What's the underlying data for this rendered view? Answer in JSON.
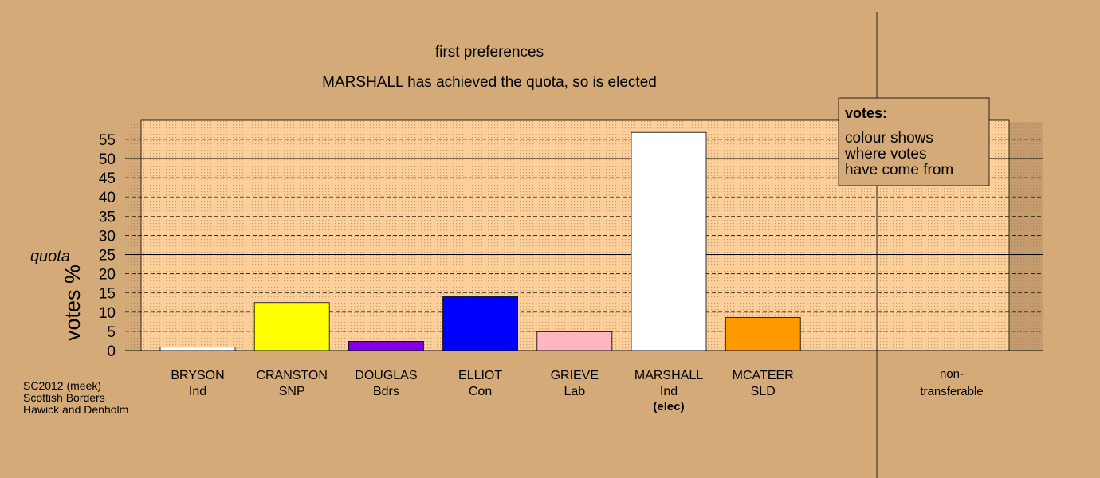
{
  "colors": {
    "background": "#d4aa78",
    "plot_bg": "#fdcf9a",
    "dots": "#b0895e",
    "legend_bg": "#d4aa78"
  },
  "title": "first preferences",
  "subtitle": "MARSHALL has achieved the quota, so is elected",
  "legend": {
    "heading": "votes:",
    "lines": [
      "colour shows",
      "where votes",
      "have come from"
    ]
  },
  "footer": [
    "SC2012 (meek)",
    "Scottish Borders",
    "Hawick and Denholm"
  ],
  "chart_data": {
    "type": "bar",
    "title": "first preferences",
    "subtitle": "MARSHALL has achieved the quota, so is elected",
    "ylabel": "votes %",
    "ylim": [
      0,
      60
    ],
    "yticks": [
      0,
      5,
      10,
      15,
      20,
      25,
      30,
      35,
      40,
      45,
      50,
      55
    ],
    "quota": 25,
    "quota_label": "quota",
    "grid": true,
    "legend_position": "top-right",
    "categories": [
      {
        "name": "BRYSON",
        "party": "Ind",
        "note": "",
        "value": 0.9,
        "color": "#ffffff"
      },
      {
        "name": "CRANSTON",
        "party": "SNP",
        "note": "",
        "value": 12.5,
        "color": "#ffff00"
      },
      {
        "name": "DOUGLAS",
        "party": "Bdrs",
        "note": "",
        "value": 2.4,
        "color": "#8000e0"
      },
      {
        "name": "ELLIOT",
        "party": "Con",
        "note": "",
        "value": 14.0,
        "color": "#0000ff"
      },
      {
        "name": "GRIEVE",
        "party": "Lab",
        "note": "",
        "value": 4.9,
        "color": "#ffb6c1"
      },
      {
        "name": "MARSHALL",
        "party": "Ind",
        "note": "(elec)",
        "value": 56.8,
        "color": "#ffffff"
      },
      {
        "name": "MCATEER",
        "party": "SLD",
        "note": "",
        "value": 8.6,
        "color": "#ff9900"
      }
    ],
    "nontransferable": {
      "line1": "non-",
      "line2": "transferable",
      "value": 0
    }
  }
}
